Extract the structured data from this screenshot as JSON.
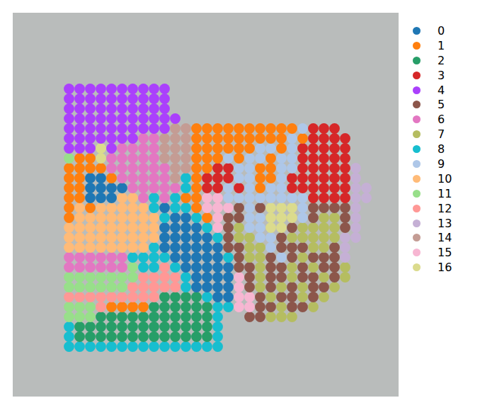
{
  "chart_data": {
    "type": "scatter",
    "tick_labels": false,
    "legend": "right",
    "series": [
      {
        "name": "0",
        "color": "#1f77b4"
      },
      {
        "name": "1",
        "color": "#ff7f0e"
      },
      {
        "name": "2",
        "color": "#279e68"
      },
      {
        "name": "3",
        "color": "#d62728"
      },
      {
        "name": "4",
        "color": "#aa40fc"
      },
      {
        "name": "5",
        "color": "#8c564b"
      },
      {
        "name": "6",
        "color": "#e377c2"
      },
      {
        "name": "7",
        "color": "#b5bd61"
      },
      {
        "name": "8",
        "color": "#17becf"
      },
      {
        "name": "9",
        "color": "#aec7e8"
      },
      {
        "name": "10",
        "color": "#ffbb78"
      },
      {
        "name": "11",
        "color": "#98df8a"
      },
      {
        "name": "12",
        "color": "#ff9896"
      },
      {
        "name": "13",
        "color": "#c5b0d5"
      },
      {
        "name": "14",
        "color": "#c49c94"
      },
      {
        "name": "15",
        "color": "#f7b6d2"
      },
      {
        "name": "16",
        "color": "#dbdb8d"
      }
    ],
    "cluster_map": [
      [
        8,
        8,
        8,
        8,
        8,
        8,
        8,
        8,
        8,
        8,
        8,
        8,
        8,
        8,
        8,
        null,
        null,
        null,
        null,
        null,
        null,
        null,
        null,
        null,
        null,
        null,
        null,
        null,
        null,
        null
      ],
      [
        8,
        2,
        2,
        2,
        2,
        2,
        2,
        2,
        2,
        2,
        2,
        2,
        2,
        2,
        8,
        null,
        null,
        null,
        null,
        null,
        null,
        null,
        null,
        null,
        null,
        null,
        null,
        null,
        null,
        null
      ],
      [
        8,
        2,
        2,
        2,
        2,
        2,
        2,
        2,
        2,
        2,
        2,
        2,
        2,
        2,
        8,
        null,
        null,
        null,
        null,
        null,
        null,
        null,
        null,
        null,
        null,
        null,
        null,
        null,
        null,
        null
      ],
      [
        11,
        11,
        11,
        2,
        2,
        2,
        2,
        2,
        2,
        2,
        2,
        2,
        2,
        2,
        8,
        null,
        null,
        5,
        5,
        7,
        7,
        7,
        null,
        null,
        null,
        null,
        null,
        null,
        null,
        null
      ],
      [
        11,
        11,
        11,
        12,
        1,
        1,
        1,
        1,
        2,
        2,
        2,
        2,
        2,
        2,
        8,
        8,
        15,
        15,
        5,
        5,
        7,
        5,
        5,
        7,
        null,
        null,
        null,
        null,
        null,
        null
      ],
      [
        12,
        12,
        12,
        12,
        12,
        12,
        12,
        12,
        12,
        2,
        2,
        2,
        2,
        8,
        0,
        0,
        15,
        15,
        5,
        7,
        5,
        5,
        7,
        5,
        7,
        null,
        null,
        null,
        null,
        null
      ],
      [
        11,
        11,
        11,
        11,
        11,
        11,
        12,
        12,
        12,
        12,
        12,
        8,
        0,
        0,
        0,
        0,
        15,
        5,
        7,
        5,
        7,
        5,
        7,
        5,
        5,
        7,
        null,
        null,
        null,
        null
      ],
      [
        11,
        11,
        11,
        11,
        11,
        11,
        11,
        12,
        12,
        12,
        12,
        8,
        0,
        0,
        0,
        0,
        15,
        5,
        7,
        5,
        5,
        7,
        5,
        5,
        7,
        5,
        7,
        null,
        null,
        null
      ],
      [
        6,
        6,
        6,
        6,
        6,
        6,
        11,
        8,
        8,
        12,
        8,
        0,
        0,
        0,
        0,
        0,
        5,
        5,
        7,
        5,
        5,
        7,
        5,
        7,
        5,
        5,
        7,
        null,
        null,
        null
      ],
      [
        6,
        6,
        6,
        6,
        6,
        6,
        8,
        8,
        8,
        8,
        0,
        0,
        0,
        0,
        0,
        8,
        5,
        7,
        7,
        5,
        9,
        5,
        7,
        5,
        5,
        5,
        13,
        null,
        null,
        null
      ],
      [
        10,
        10,
        10,
        10,
        10,
        10,
        10,
        10,
        8,
        0,
        0,
        0,
        0,
        0,
        0,
        5,
        5,
        7,
        7,
        9,
        5,
        5,
        5,
        7,
        7,
        5,
        13,
        null,
        null,
        null
      ],
      [
        10,
        10,
        10,
        10,
        10,
        10,
        10,
        10,
        10,
        0,
        0,
        0,
        0,
        0,
        8,
        5,
        7,
        7,
        9,
        9,
        5,
        7,
        7,
        7,
        7,
        7,
        13,
        13,
        null,
        null
      ],
      [
        10,
        10,
        10,
        10,
        10,
        10,
        10,
        10,
        10,
        0,
        0,
        0,
        0,
        8,
        15,
        5,
        7,
        9,
        9,
        16,
        16,
        5,
        7,
        7,
        7,
        7,
        5,
        13,
        null,
        null
      ],
      [
        1,
        10,
        10,
        10,
        10,
        10,
        10,
        10,
        10,
        8,
        0,
        0,
        8,
        1,
        15,
        5,
        5,
        9,
        9,
        16,
        16,
        16,
        9,
        5,
        7,
        7,
        5,
        13,
        null,
        null
      ],
      [
        1,
        10,
        1,
        10,
        10,
        10,
        10,
        10,
        8,
        0,
        8,
        8,
        1,
        15,
        15,
        15,
        5,
        9,
        5,
        16,
        16,
        16,
        9,
        5,
        5,
        5,
        5,
        13,
        null,
        null
      ],
      [
        1,
        1,
        0,
        0,
        0,
        10,
        10,
        6,
        8,
        6,
        8,
        1,
        1,
        15,
        15,
        9,
        9,
        9,
        9,
        9,
        9,
        9,
        9,
        3,
        3,
        3,
        3,
        13,
        13,
        null
      ],
      [
        1,
        1,
        0,
        0,
        0,
        0,
        6,
        6,
        6,
        6,
        6,
        8,
        1,
        3,
        3,
        9,
        3,
        9,
        1,
        9,
        9,
        3,
        3,
        3,
        3,
        3,
        3,
        13,
        13,
        null
      ],
      [
        1,
        1,
        0,
        0,
        1,
        6,
        6,
        6,
        6,
        6,
        14,
        8,
        1,
        3,
        3,
        3,
        9,
        9,
        1,
        1,
        9,
        3,
        3,
        3,
        3,
        3,
        3,
        13,
        null,
        null
      ],
      [
        1,
        1,
        1,
        1,
        6,
        6,
        6,
        6,
        6,
        6,
        14,
        14,
        1,
        1,
        3,
        3,
        9,
        9,
        1,
        1,
        9,
        9,
        3,
        3,
        3,
        3,
        3,
        13,
        null,
        null
      ],
      [
        11,
        1,
        1,
        16,
        6,
        6,
        6,
        6,
        6,
        14,
        14,
        14,
        1,
        1,
        1,
        9,
        1,
        9,
        9,
        1,
        9,
        9,
        3,
        3,
        3,
        3,
        3,
        null,
        null,
        null
      ],
      [
        4,
        4,
        4,
        16,
        4,
        6,
        6,
        6,
        6,
        14,
        14,
        14,
        1,
        1,
        1,
        1,
        1,
        1,
        9,
        9,
        1,
        9,
        3,
        3,
        3,
        3,
        3,
        null,
        null,
        null
      ],
      [
        4,
        4,
        4,
        4,
        4,
        4,
        4,
        6,
        6,
        14,
        14,
        14,
        1,
        1,
        1,
        1,
        1,
        1,
        1,
        1,
        1,
        9,
        1,
        3,
        3,
        3,
        3,
        null,
        null,
        null
      ],
      [
        4,
        4,
        4,
        4,
        4,
        4,
        4,
        4,
        4,
        4,
        14,
        14,
        1,
        1,
        1,
        1,
        1,
        1,
        1,
        1,
        1,
        1,
        9,
        3,
        3,
        3,
        null,
        null,
        null,
        null
      ],
      [
        4,
        4,
        4,
        4,
        4,
        4,
        4,
        4,
        4,
        4,
        4,
        null,
        null,
        null,
        null,
        null,
        null,
        null,
        null,
        null,
        null,
        null,
        null,
        null,
        null,
        null,
        null,
        null,
        null,
        null
      ],
      [
        4,
        4,
        4,
        4,
        4,
        4,
        4,
        4,
        4,
        4,
        null,
        null,
        null,
        null,
        null,
        null,
        null,
        null,
        null,
        null,
        null,
        null,
        null,
        null,
        null,
        null,
        null,
        null,
        null,
        null
      ],
      [
        4,
        4,
        4,
        4,
        4,
        4,
        4,
        4,
        4,
        4,
        null,
        null,
        null,
        null,
        null,
        null,
        null,
        null,
        null,
        null,
        null,
        null,
        null,
        null,
        null,
        null,
        null,
        null,
        null,
        null
      ],
      [
        4,
        4,
        4,
        4,
        4,
        4,
        4,
        4,
        4,
        4,
        null,
        null,
        null,
        null,
        null,
        null,
        null,
        null,
        null,
        null,
        null,
        null,
        null,
        null,
        null,
        null,
        null,
        null,
        null,
        null
      ]
    ]
  }
}
